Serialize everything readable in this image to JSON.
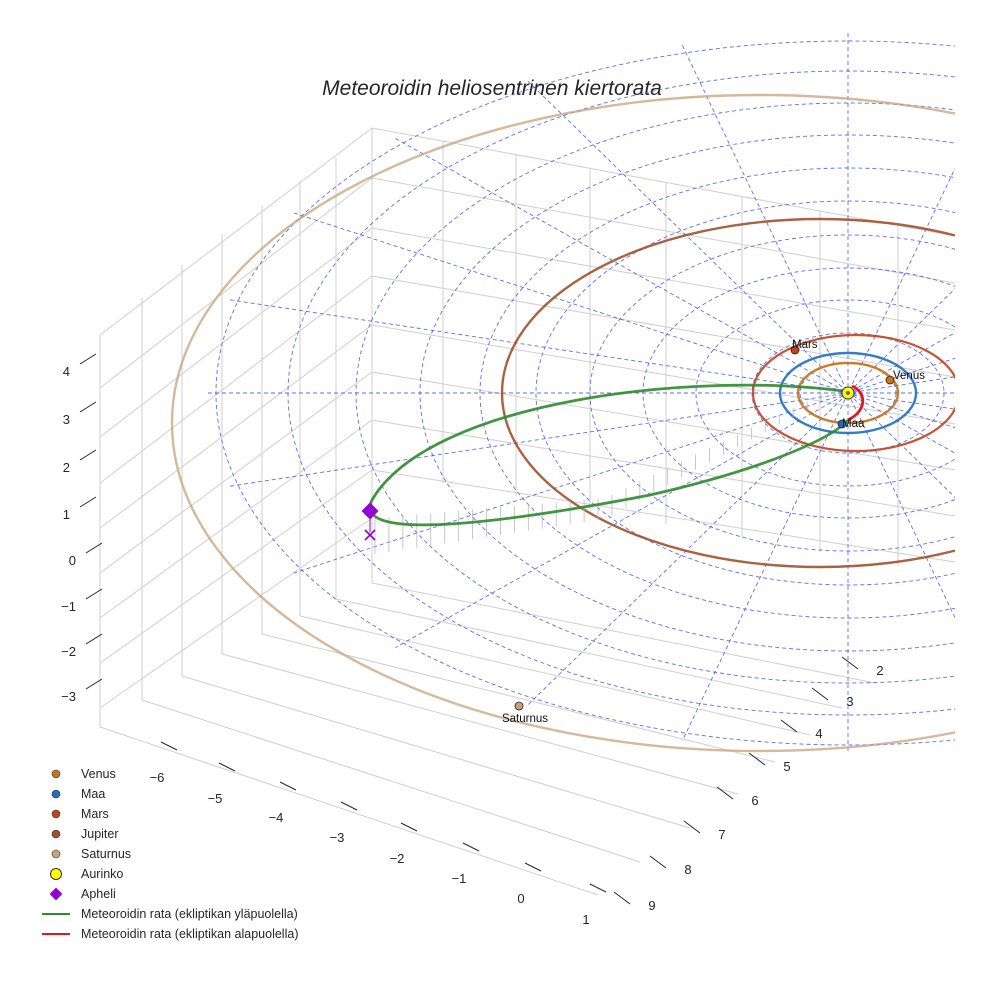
{
  "chart_data": {
    "type": "line-3d",
    "title": "Meteoroidin heliosentrinen kiertorata",
    "axes": {
      "x": {
        "label": "",
        "ticks": [
          -6,
          -5,
          -4,
          -3,
          -2,
          -1,
          0,
          1
        ],
        "tick_labels": [
          "−6",
          "−5",
          "−4",
          "−3",
          "−2",
          "−1",
          "0",
          "1"
        ]
      },
      "y": {
        "label": "",
        "ticks": [
          2,
          3,
          4,
          5,
          6,
          7,
          8,
          9
        ],
        "tick_labels": [
          "2",
          "3",
          "4",
          "5",
          "6",
          "7",
          "8",
          "9"
        ]
      },
      "z": {
        "label": "",
        "ticks": [
          -3,
          -2,
          -1,
          0,
          1,
          2,
          3,
          4
        ],
        "tick_labels": [
          "−3",
          "−2",
          "−1",
          "0",
          "1",
          "2",
          "3",
          "4"
        ]
      }
    },
    "ecliptic_grid": {
      "style": "dashed",
      "color": "#4455ee",
      "rings": 11,
      "spokes": 12
    },
    "bodies": [
      {
        "name": "Venus",
        "color": "#c8741a",
        "orbit_radius_au": 0.72,
        "label": "Venus"
      },
      {
        "name": "Maa",
        "color": "#1f6fbf",
        "orbit_radius_au": 1.0,
        "label": "Maa"
      },
      {
        "name": "Mars",
        "color": "#c0441c",
        "orbit_radius_au": 1.52,
        "label": "Mars"
      },
      {
        "name": "Jupiter",
        "color": "#a0522d",
        "orbit_radius_au": 5.2,
        "label": ""
      },
      {
        "name": "Saturnus",
        "color": "#c8a07a",
        "orbit_radius_au": 9.5,
        "label": "Saturnus"
      },
      {
        "name": "Aurinko",
        "color": "#ffff00",
        "orbit_radius_au": 0,
        "label": ""
      }
    ],
    "meteoroid_orbit": {
      "segments": [
        {
          "name": "Meteoroidin rata (ekliptikan yläpuolella)",
          "color": "#2e8b2e"
        },
        {
          "name": "Meteoroidin rata (ekliptikan alapuolella)",
          "color": "#e8141c"
        }
      ],
      "aphelion": {
        "name": "Apheli",
        "color": "#9400d3"
      }
    },
    "legend": {
      "position": "bottom-left",
      "entries": [
        {
          "label": "Venus",
          "kind": "dot",
          "color": "#c8741a"
        },
        {
          "label": "Maa",
          "kind": "dot",
          "color": "#1f6fbf"
        },
        {
          "label": "Mars",
          "kind": "dot",
          "color": "#c0441c"
        },
        {
          "label": "Jupiter",
          "kind": "dot",
          "color": "#a0522d"
        },
        {
          "label": "Saturnus",
          "kind": "dot",
          "color": "#c8a07a"
        },
        {
          "label": "Aurinko",
          "kind": "sun",
          "color": "#ffff00"
        },
        {
          "label": "Apheli",
          "kind": "diamond",
          "color": "#9400d3"
        },
        {
          "label": "Meteoroidin rata (ekliptikan yläpuolella)",
          "kind": "line",
          "color": "#2e8b2e"
        },
        {
          "label": "Meteoroidin rata (ekliptikan alapuolella)",
          "kind": "line",
          "color": "#e8141c"
        }
      ]
    }
  }
}
